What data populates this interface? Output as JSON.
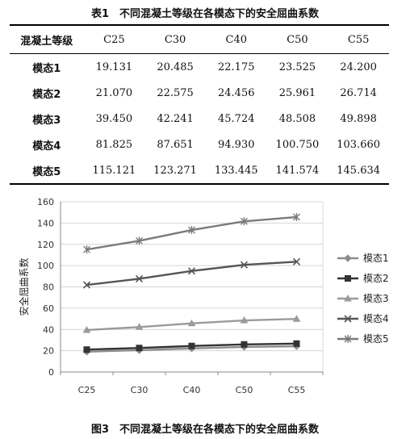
{
  "table": {
    "caption": "表1　不同混凝土等级在各模态下的安全屈曲系数",
    "row_header": "混凝土等级",
    "columns": [
      "C25",
      "C30",
      "C40",
      "C50",
      "C55"
    ],
    "rows": [
      {
        "label": "模态1",
        "values": [
          "19.131",
          "20.485",
          "22.175",
          "23.525",
          "24.200"
        ]
      },
      {
        "label": "模态2",
        "values": [
          "21.070",
          "22.575",
          "24.456",
          "25.961",
          "26.714"
        ]
      },
      {
        "label": "模态3",
        "values": [
          "39.450",
          "42.241",
          "45.724",
          "48.508",
          "49.898"
        ]
      },
      {
        "label": "模态4",
        "values": [
          "81.825",
          "87.651",
          "94.930",
          "100.750",
          "103.660"
        ]
      },
      {
        "label": "模态5",
        "values": [
          "115.121",
          "123.271",
          "133.445",
          "141.574",
          "145.634"
        ]
      }
    ]
  },
  "chart_data": {
    "type": "line",
    "categories": [
      "C25",
      "C30",
      "C40",
      "C50",
      "C55"
    ],
    "ylabel": "安全屈曲系数",
    "ylim": [
      0,
      160
    ],
    "yticks": [
      0,
      20,
      40,
      60,
      80,
      100,
      120,
      140,
      160
    ],
    "grid": true,
    "legend_position": "right",
    "series": [
      {
        "name": "模态1",
        "marker": "diamond",
        "color": "#8c8c8c",
        "values": [
          19.131,
          20.485,
          22.175,
          23.525,
          24.2
        ]
      },
      {
        "name": "模态2",
        "marker": "square",
        "color": "#333333",
        "values": [
          21.07,
          22.575,
          24.456,
          25.961,
          26.714
        ]
      },
      {
        "name": "模态3",
        "marker": "triangle",
        "color": "#9a9a9a",
        "values": [
          39.45,
          42.241,
          45.724,
          48.508,
          49.898
        ]
      },
      {
        "name": "模态4",
        "marker": "cross",
        "color": "#555555",
        "values": [
          81.825,
          87.651,
          94.93,
          100.75,
          103.66
        ]
      },
      {
        "name": "模态5",
        "marker": "star",
        "color": "#7a7a7a",
        "values": [
          115.121,
          123.271,
          133.445,
          141.574,
          145.634
        ]
      }
    ]
  },
  "figure_caption": "图3　不同混凝土等级在各模态下的安全屈曲系数"
}
